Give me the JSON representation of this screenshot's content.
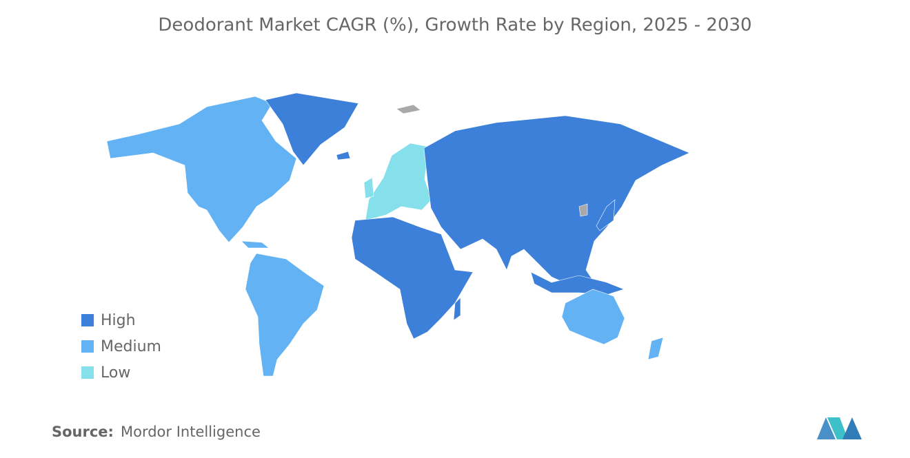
{
  "title": "Deodorant Market CAGR (%), Growth Rate by Region, 2025 - 2030",
  "legend": [
    {
      "label": "High",
      "color": "#3d80d9"
    },
    {
      "label": "Medium",
      "color": "#62b2f4"
    },
    {
      "label": "Low",
      "color": "#86e0ec"
    }
  ],
  "source": {
    "label": "Source:",
    "text": "Mordor Intelligence"
  }
}
